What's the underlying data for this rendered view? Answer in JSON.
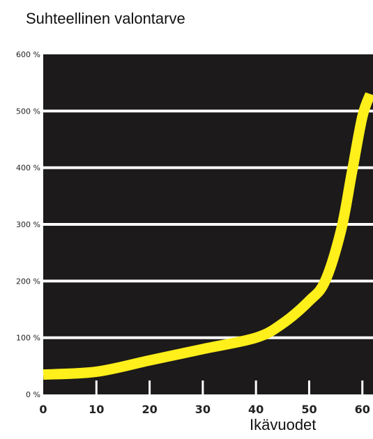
{
  "chart_data": {
    "type": "line",
    "title": "Suhteellinen valontarve",
    "xlabel": "Ikävuodet",
    "ylabel": "",
    "x_ticks": [
      "0",
      "10",
      "20",
      "30",
      "40",
      "50",
      "60"
    ],
    "y_ticks": [
      "0 %",
      "100 %",
      "200 %",
      "300 %",
      "400 %",
      "500 %",
      "600 %"
    ],
    "xlim": [
      0,
      62
    ],
    "ylim": [
      0,
      600
    ],
    "grid": true,
    "background_color": "#1c1a1a",
    "gridline_color": "#ffffff",
    "series": [
      {
        "color": "#ffef1a",
        "x": [
          0,
          10,
          20,
          30,
          40,
          45,
          50,
          53,
          56,
          58,
          60,
          61.5
        ],
        "y": [
          35,
          40,
          60,
          80,
          100,
          125,
          165,
          200,
          290,
          390,
          490,
          530
        ]
      }
    ]
  }
}
